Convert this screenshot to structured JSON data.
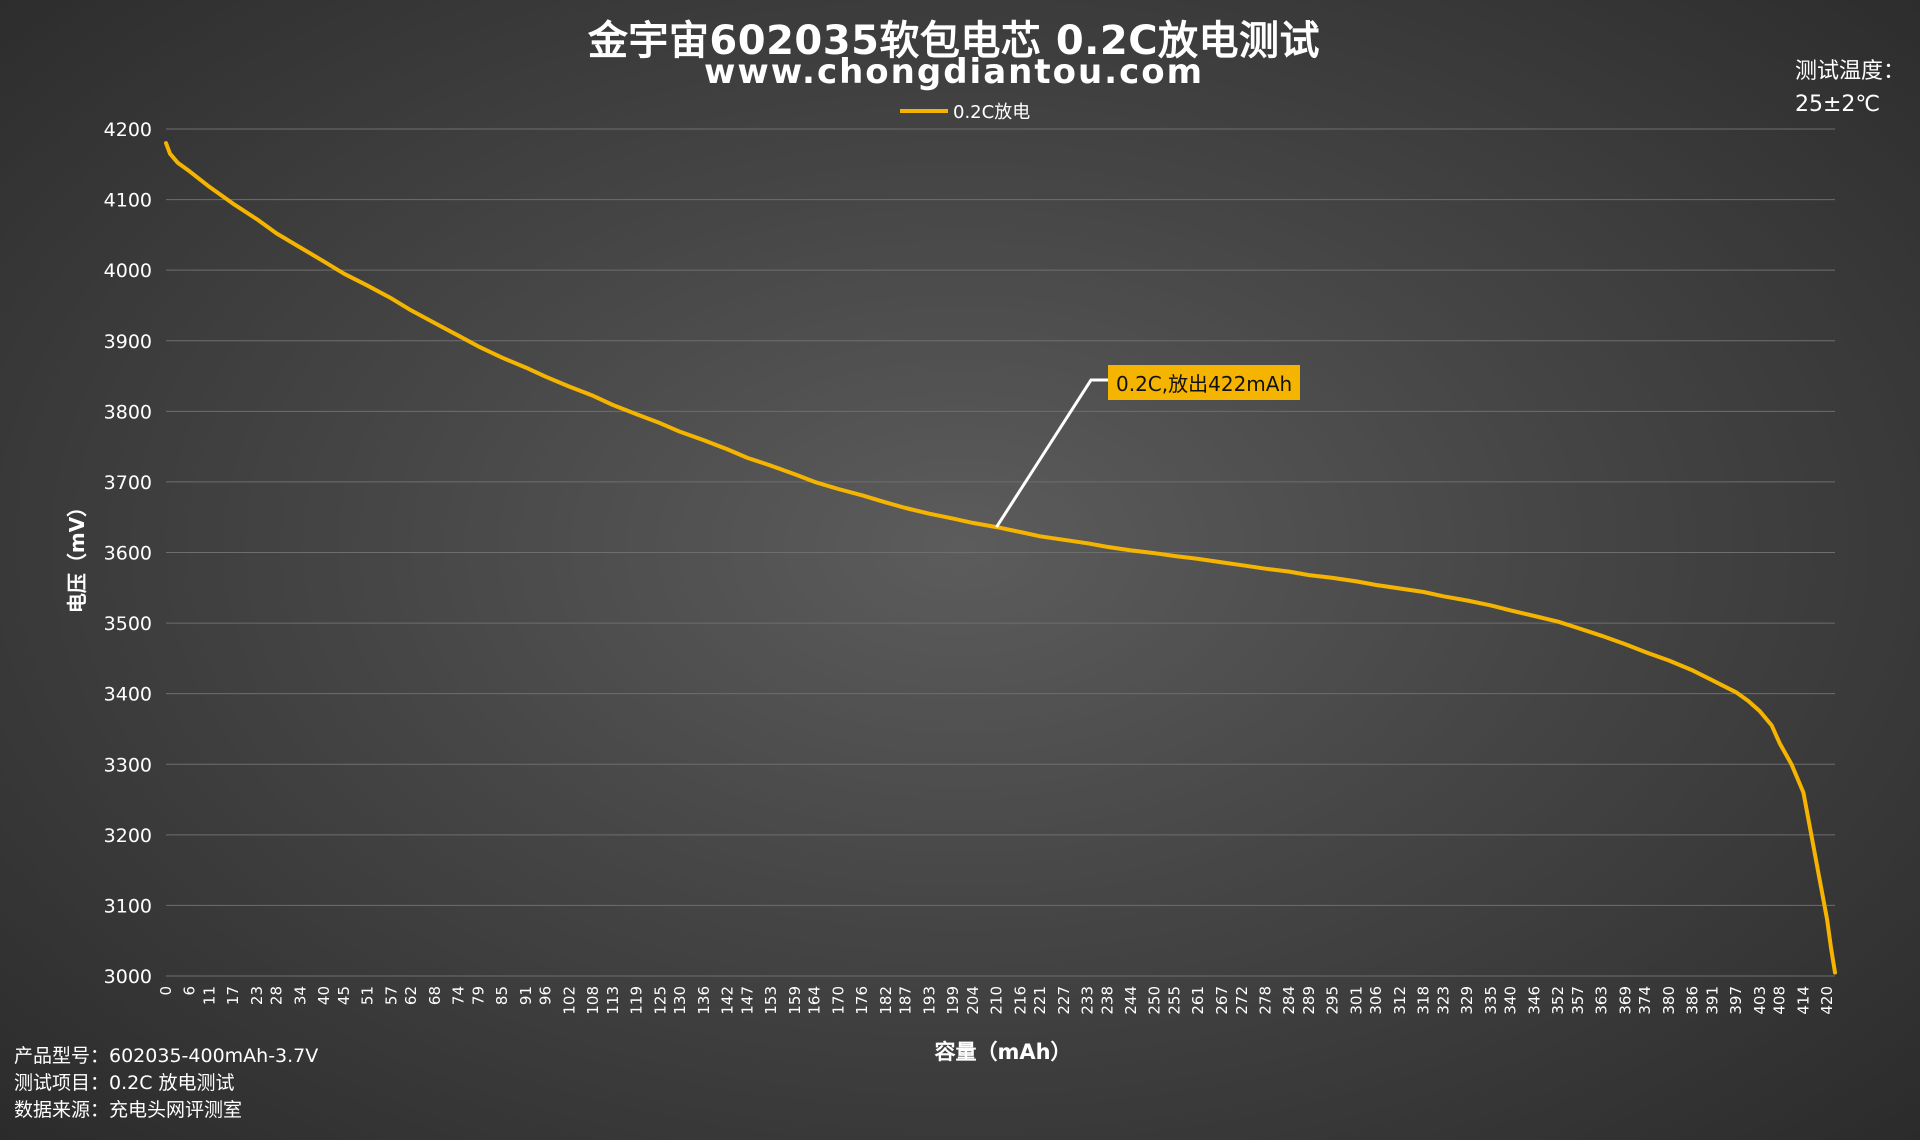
{
  "header": {
    "title": "金宇宙602035软包电芯 0.2C放电测试",
    "subtitle": "www.chongdiantou.com",
    "temp_label": "测试温度：",
    "temp_value": "25±2℃"
  },
  "footer": {
    "product_model": "产品型号：602035-400mAh-3.7V",
    "test_item": "测试项目：0.2C 放电测试",
    "data_source": "数据来源：充电头网评测室"
  },
  "annotation": {
    "label": "0.2C,放出422mAh",
    "x": 210,
    "y": 3636
  },
  "colors": {
    "series": "#f5b400",
    "grid": "#6e6e6e",
    "annotation_line": "#ffffff",
    "annotation_bg": "#f5b400"
  },
  "chart_data": {
    "type": "line",
    "title": "金宇宙602035软包电芯 0.2C放电测试",
    "xlabel": "容量（mAh）",
    "ylabel": "电压（mV）",
    "xlim": [
      0,
      422
    ],
    "ylim": [
      3000,
      4200
    ],
    "yticks": [
      3000,
      3100,
      3200,
      3300,
      3400,
      3500,
      3600,
      3700,
      3800,
      3900,
      4000,
      4100,
      4200
    ],
    "xticks": [
      0,
      6,
      11,
      17,
      23,
      28,
      34,
      40,
      45,
      51,
      57,
      62,
      68,
      74,
      79,
      85,
      91,
      96,
      102,
      108,
      113,
      119,
      125,
      130,
      136,
      142,
      147,
      153,
      159,
      164,
      170,
      176,
      182,
      187,
      193,
      199,
      204,
      210,
      216,
      221,
      227,
      233,
      238,
      244,
      250,
      255,
      261,
      267,
      272,
      278,
      284,
      289,
      295,
      301,
      306,
      312,
      318,
      323,
      329,
      335,
      340,
      346,
      352,
      357,
      363,
      369,
      374,
      380,
      386,
      391,
      397,
      403,
      408,
      414,
      420
    ],
    "grid": true,
    "legend_position": "top-center",
    "series": [
      {
        "name": "0.2C放电",
        "color": "#f5b400",
        "x": [
          0,
          1,
          3,
          6,
          11,
          17,
          23,
          28,
          34,
          40,
          45,
          51,
          57,
          62,
          68,
          74,
          79,
          85,
          91,
          96,
          102,
          108,
          113,
          119,
          125,
          130,
          136,
          142,
          147,
          153,
          159,
          164,
          170,
          176,
          182,
          187,
          193,
          199,
          204,
          210,
          216,
          221,
          227,
          233,
          238,
          244,
          250,
          255,
          261,
          267,
          272,
          278,
          284,
          289,
          295,
          301,
          306,
          312,
          318,
          323,
          329,
          335,
          340,
          346,
          352,
          357,
          363,
          369,
          374,
          380,
          386,
          391,
          397,
          400,
          403,
          406,
          408,
          411,
          414,
          416,
          418,
          420,
          421,
          422
        ],
        "y": [
          4180,
          4165,
          4152,
          4140,
          4118,
          4094,
          4072,
          4052,
          4032,
          4012,
          3995,
          3978,
          3960,
          3943,
          3925,
          3907,
          3892,
          3876,
          3862,
          3849,
          3835,
          3822,
          3809,
          3796,
          3783,
          3771,
          3759,
          3746,
          3734,
          3723,
          3711,
          3700,
          3690,
          3681,
          3671,
          3663,
          3655,
          3648,
          3642,
          3636,
          3629,
          3623,
          3618,
          3613,
          3608,
          3603,
          3599,
          3595,
          3591,
          3586,
          3582,
          3577,
          3573,
          3568,
          3564,
          3559,
          3554,
          3549,
          3544,
          3538,
          3532,
          3525,
          3518,
          3510,
          3502,
          3493,
          3482,
          3470,
          3459,
          3447,
          3433,
          3419,
          3402,
          3390,
          3375,
          3355,
          3330,
          3300,
          3260,
          3200,
          3140,
          3080,
          3040,
          3005
        ]
      }
    ]
  }
}
